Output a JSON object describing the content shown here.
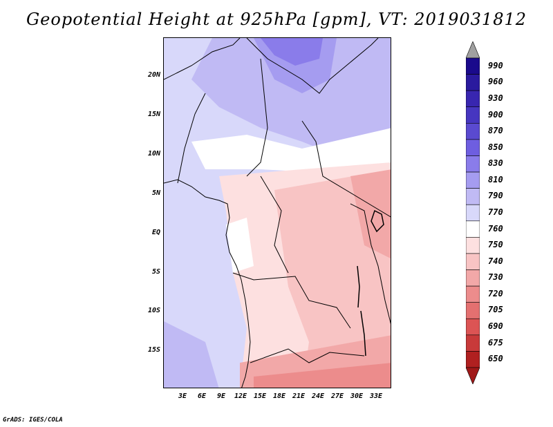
{
  "title": "Geopotential Height at 925hPa [gpm], VT: 2019031812",
  "footer": "GrADS: IGES/COLA",
  "lat_ticks": [
    "20N",
    "15N",
    "10N",
    "5N",
    "EQ",
    "5S",
    "10S",
    "15S"
  ],
  "lon_ticks": [
    "3E",
    "6E",
    "9E",
    "12E",
    "15E",
    "18E",
    "21E",
    "24E",
    "27E",
    "30E",
    "33E"
  ],
  "map_extent": {
    "lon": [
      0,
      35
    ],
    "lat": [
      -19.5,
      25
    ]
  },
  "colorbar": {
    "levels": [
      "990",
      "960",
      "930",
      "900",
      "870",
      "850",
      "830",
      "810",
      "790",
      "770",
      "760",
      "750",
      "740",
      "730",
      "720",
      "705",
      "690",
      "675",
      "650"
    ],
    "colors": [
      "#1a0a8c",
      "#2a1a9e",
      "#3826b0",
      "#4636c0",
      "#5a4ad0",
      "#6e5ee0",
      "#8a7cea",
      "#a59cf0",
      "#c0baf4",
      "#d8d8fa",
      "#ffffff",
      "#fde0e0",
      "#f8c4c4",
      "#f2a8a8",
      "#ec8c8c",
      "#e47070",
      "#dc5454",
      "#c83a3a",
      "#b02020"
    ],
    "top_arrow_color": "#a0a0a0",
    "bottom_arrow_color": "#a01818"
  },
  "colors": {
    "ocean": "#d8d8fa",
    "high": "#a59cf0",
    "low": "#f2a8a8"
  }
}
